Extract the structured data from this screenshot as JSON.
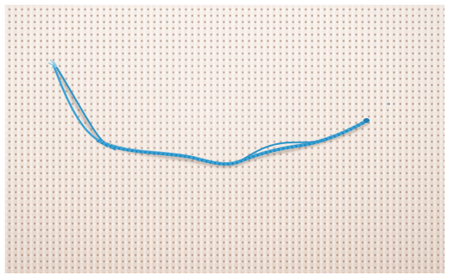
{
  "image": {
    "subject": "thread-on-fabric",
    "colors": {
      "frame": "#ffffff",
      "fabric": "#f1e6dd",
      "fabric_holes": "#966c58",
      "thread_main": "#3aa3d6",
      "thread_light": "#7cc6ea",
      "thread_dark": "#1f7fb4"
    }
  }
}
